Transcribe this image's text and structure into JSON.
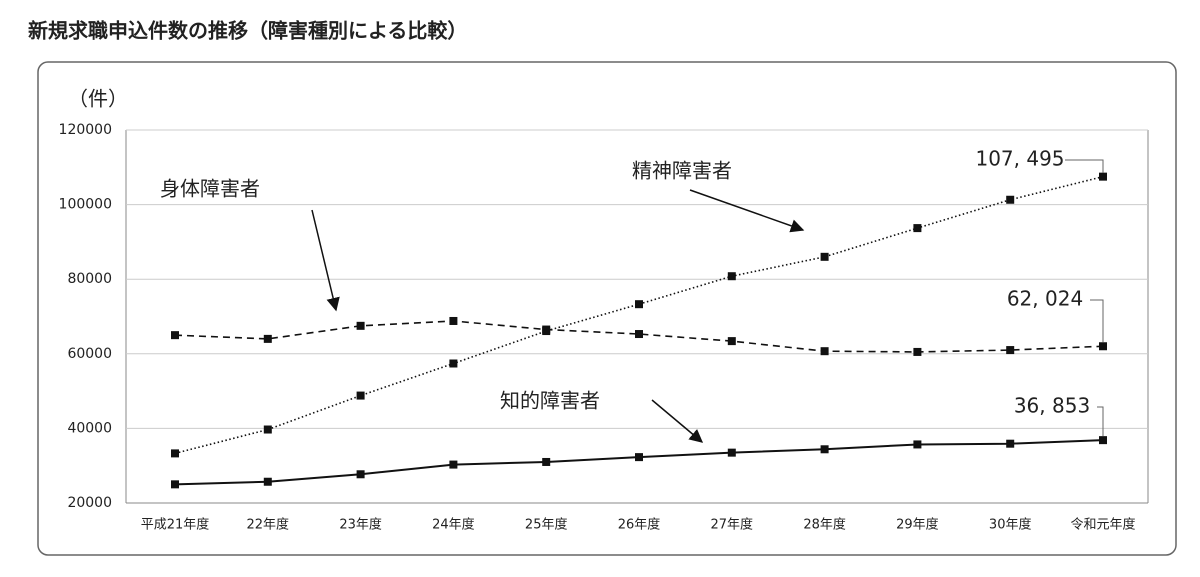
{
  "chart_data": {
    "type": "line",
    "title": "新規求職申込件数の推移（障害種別による比較）",
    "y_label": "（件）",
    "categories": [
      "平成21年度",
      "22年度",
      "23年度",
      "24年度",
      "25年度",
      "26年度",
      "27年度",
      "28年度",
      "29年度",
      "30年度",
      "令和元年度"
    ],
    "series": [
      {
        "name": "身体障害者",
        "color": "#111111",
        "linestyle": "dashed",
        "values": [
          65000,
          64000,
          67500,
          68800,
          66500,
          65300,
          63400,
          60700,
          60500,
          61000,
          62024
        ],
        "value_labels": [
          null,
          null,
          null,
          null,
          null,
          null,
          null,
          null,
          null,
          null,
          "62, 024"
        ]
      },
      {
        "name": "精神障害者",
        "color": "#111111",
        "linestyle": "dotted",
        "values": [
          33300,
          39700,
          48800,
          57400,
          66100,
          73300,
          80800,
          86000,
          93700,
          101300,
          107495
        ],
        "value_labels": [
          null,
          null,
          null,
          null,
          null,
          null,
          null,
          null,
          null,
          null,
          "107, 495"
        ]
      },
      {
        "name": "知的障害者",
        "color": "#111111",
        "linestyle": "solid",
        "values": [
          25000,
          25700,
          27700,
          30300,
          31000,
          32300,
          33500,
          34400,
          35700,
          35900,
          36853
        ],
        "value_labels": [
          null,
          null,
          null,
          null,
          null,
          null,
          null,
          null,
          null,
          null,
          "36, 853"
        ]
      }
    ],
    "ylim": [
      20000,
      120000
    ],
    "yticks": [
      20000,
      40000,
      60000,
      80000,
      100000,
      120000
    ],
    "grid": true
  }
}
